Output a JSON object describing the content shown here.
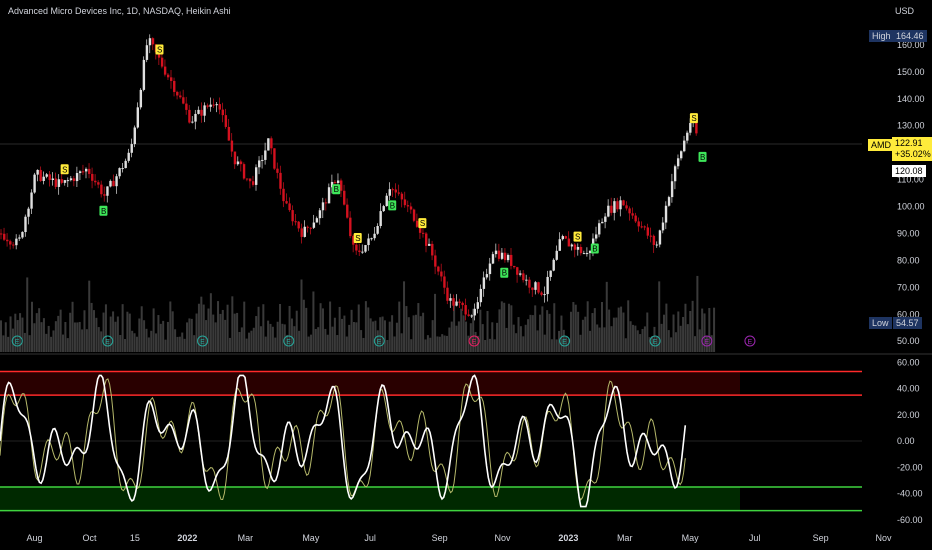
{
  "header": {
    "title": "Advanced Micro Devices Inc, 1D, NASDAQ, Heikin Ashi",
    "currency": "USD"
  },
  "flags": {
    "high_label": "High",
    "high_value": "164.46",
    "low_label": "Low",
    "low_value": "54.57",
    "ticker": "AMD",
    "last_price": "122.91",
    "change_pct": "+35.02%",
    "close_price": "120.08"
  },
  "colors": {
    "bg": "#000000",
    "up": "#e0e0e0",
    "down": "#d4111f",
    "sell": "#ffeb3b",
    "buy": "#3ee65a",
    "osc_main": "#ffffff",
    "osc_signal": "#b5b86a",
    "over_line": "#ff2a2a",
    "under_line": "#3fd43f"
  },
  "chart_data": [
    {
      "type": "candlestick",
      "title": "Advanced Micro Devices Inc, 1D, NASDAQ, Heikin Ashi",
      "y_ticks": [
        50,
        60,
        70,
        80,
        90,
        100,
        110,
        120,
        130,
        140,
        150,
        160
      ],
      "ylim": [
        46,
        170
      ],
      "x_labels": [
        "Aug",
        "Oct",
        "15",
        "2022",
        "Mar",
        "May",
        "Jul",
        "Sep",
        "Nov",
        "2023",
        "Mar",
        "May",
        "Jul",
        "Sep",
        "Nov"
      ],
      "bold_x_labels": [
        "2022",
        "2023"
      ],
      "price_path": [
        [
          0,
          90
        ],
        [
          0.02,
          86
        ],
        [
          0.04,
          112
        ],
        [
          0.07,
          108
        ],
        [
          0.1,
          114
        ],
        [
          0.12,
          104
        ],
        [
          0.15,
          120
        ],
        [
          0.17,
          162
        ],
        [
          0.2,
          145
        ],
        [
          0.22,
          132
        ],
        [
          0.25,
          140
        ],
        [
          0.27,
          118
        ],
        [
          0.29,
          108
        ],
        [
          0.31,
          124
        ],
        [
          0.33,
          100
        ],
        [
          0.35,
          90
        ],
        [
          0.37,
          98
        ],
        [
          0.39,
          112
        ],
        [
          0.41,
          82
        ],
        [
          0.43,
          88
        ],
        [
          0.45,
          108
        ],
        [
          0.48,
          96
        ],
        [
          0.5,
          82
        ],
        [
          0.52,
          65
        ],
        [
          0.55,
          60
        ],
        [
          0.57,
          84
        ],
        [
          0.59,
          80
        ],
        [
          0.61,
          72
        ],
        [
          0.63,
          68
        ],
        [
          0.65,
          88
        ],
        [
          0.68,
          82
        ],
        [
          0.7,
          98
        ],
        [
          0.72,
          102
        ],
        [
          0.74,
          94
        ],
        [
          0.76,
          85
        ],
        [
          0.78,
          112
        ],
        [
          0.8,
          132
        ],
        [
          0.81,
          124
        ]
      ],
      "sell_signals": [
        0.075,
        0.185,
        0.415,
        0.49,
        0.67,
        0.805
      ],
      "buy_signals": [
        0.12,
        0.39,
        0.455,
        0.585,
        0.69,
        0.815
      ],
      "earnings_markers": [
        0.02,
        0.125,
        0.235,
        0.335,
        0.44,
        0.55,
        0.655,
        0.76,
        0.82,
        0.87
      ]
    },
    {
      "type": "line",
      "name": "oscillator",
      "y_ticks": [
        60,
        40,
        20,
        0,
        -20,
        -40,
        -60
      ],
      "ylim": [
        -64,
        64
      ],
      "overbought": [
        53,
        35
      ],
      "oversold": [
        -35,
        -53
      ]
    }
  ]
}
